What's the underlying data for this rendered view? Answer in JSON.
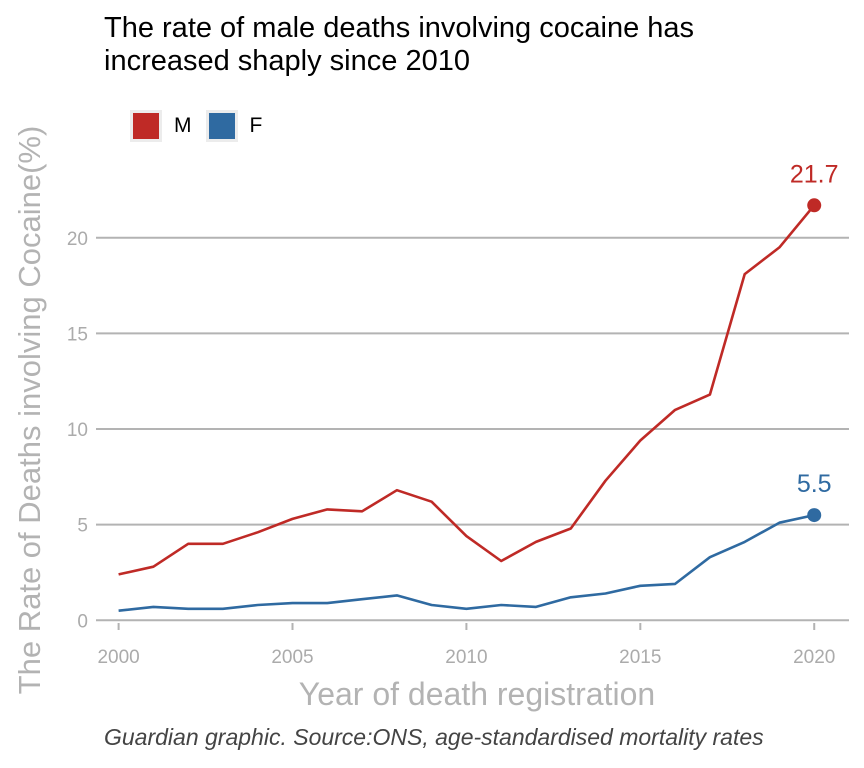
{
  "chart_data": {
    "type": "line",
    "title_lines": [
      "The rate of male deaths involving cocaine has",
      "increased shaply since 2010"
    ],
    "xlabel": "Year of death registration",
    "ylabel": "The Rate of Deaths involving Cocaine(%)",
    "caption": "Guardian graphic. Source:ONS, age-standardised mortality rates",
    "x": [
      2000,
      2001,
      2002,
      2003,
      2004,
      2005,
      2006,
      2007,
      2008,
      2009,
      2010,
      2011,
      2012,
      2013,
      2014,
      2015,
      2016,
      2017,
      2018,
      2019,
      2020
    ],
    "xlim": [
      1999.35,
      2021
    ],
    "ylim": [
      -0.3,
      22.5
    ],
    "x_ticks": [
      2000,
      2005,
      2010,
      2015,
      2020
    ],
    "y_ticks": [
      0,
      5,
      10,
      15,
      20
    ],
    "grid": "horizontal",
    "legend_position": "top-left",
    "series": [
      {
        "name": "M",
        "color": "#bf2a26",
        "values": [
          2.4,
          2.8,
          4.0,
          4.0,
          4.6,
          5.3,
          5.8,
          5.7,
          6.8,
          6.2,
          4.4,
          3.1,
          4.1,
          4.8,
          7.3,
          9.4,
          11.0,
          11.8,
          18.1,
          19.5,
          21.7
        ],
        "end_label": "21.7"
      },
      {
        "name": "F",
        "color": "#2f6aa1",
        "values": [
          0.5,
          0.7,
          0.6,
          0.6,
          0.8,
          0.9,
          0.9,
          1.1,
          1.3,
          0.8,
          0.6,
          0.8,
          0.7,
          1.2,
          1.4,
          1.8,
          1.9,
          3.3,
          4.1,
          5.1,
          5.5
        ],
        "end_label": "5.5"
      }
    ]
  }
}
